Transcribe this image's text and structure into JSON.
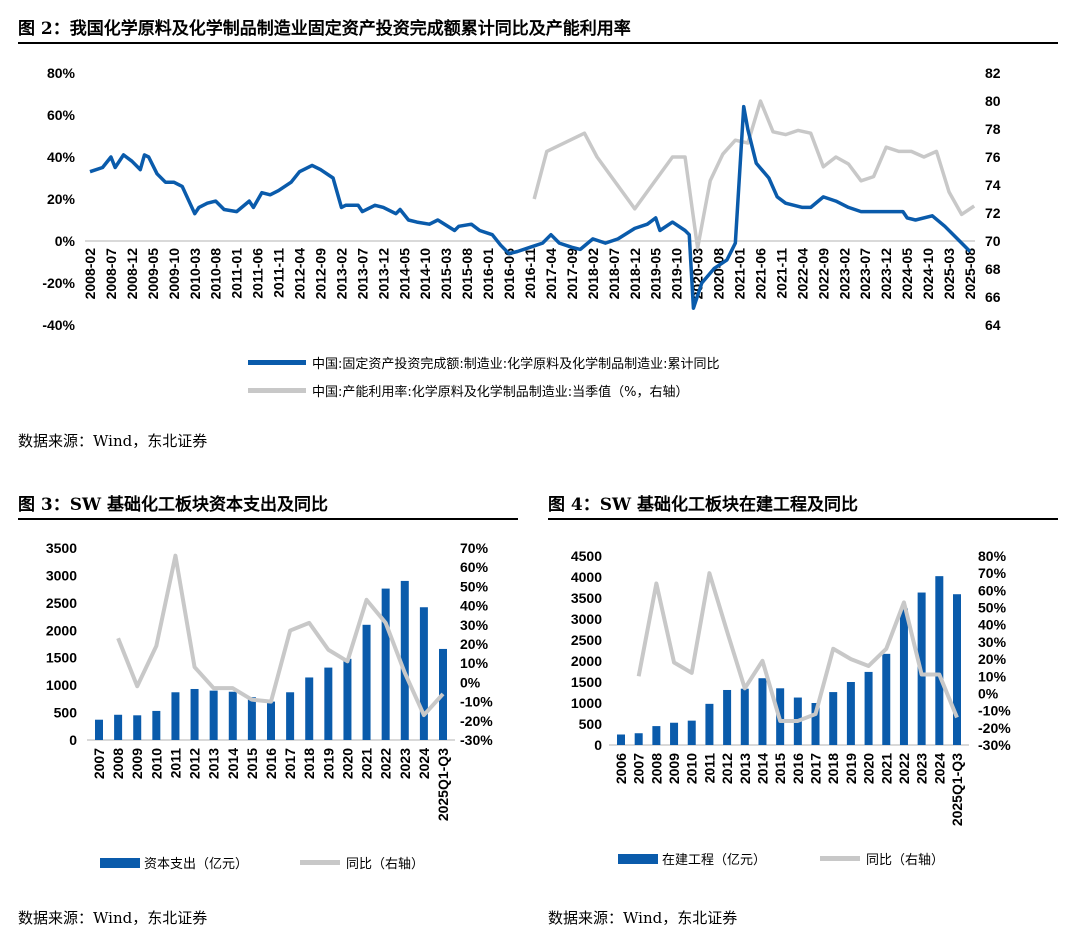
{
  "fig2": {
    "title": "图 2：我国化学原料及化学制品制造业固定资产投资完成额累计同比及产能利用率",
    "source": "数据来源：Wind，东北证券",
    "legend": [
      "中国:固定资产投资完成额:制造业:化学原料及化学制品制造业:累计同比",
      "中国:产能利用率:化学原料及化学制品制造业:当季值（%，右轴）"
    ]
  },
  "fig3": {
    "title": "图 3：SW 基础化工板块资本支出及同比",
    "source": "数据来源：Wind，东北证券",
    "legend": [
      "资本支出（亿元）",
      "同比（右轴）"
    ]
  },
  "fig4": {
    "title": "图 4：SW 基础化工板块在建工程及同比",
    "source": "数据来源：Wind，东北证券",
    "legend": [
      "在建工程（亿元）",
      "同比（右轴）"
    ]
  },
  "colors": {
    "bar": "#0a5bab",
    "line": "#c8c8c8",
    "zero": "#d9d9d9"
  },
  "chart_data": [
    {
      "type": "line",
      "title": "图 2",
      "x_ticks": [
        "2008-02",
        "2008-07",
        "2008-12",
        "2009-05",
        "2009-10",
        "2010-03",
        "2010-08",
        "2011-01",
        "2011-06",
        "2011-11",
        "2012-04",
        "2012-09",
        "2013-02",
        "2013-07",
        "2013-12",
        "2014-05",
        "2014-10",
        "2015-03",
        "2015-08",
        "2016-01",
        "2016-06",
        "2016-11",
        "2017-04",
        "2017-09",
        "2018-02",
        "2018-07",
        "2018-12",
        "2019-05",
        "2019-10",
        "2020-03",
        "2020-08",
        "2021-01",
        "2021-06",
        "2021-11",
        "2022-04",
        "2022-09",
        "2023-02",
        "2023-07",
        "2023-12",
        "2024-05",
        "2024-10",
        "2025-03",
        "2025-08"
      ],
      "y_left": {
        "ticks": [
          "80%",
          "60%",
          "40%",
          "20%",
          "0%",
          "-20%",
          "-40%"
        ],
        "range": [
          -40,
          80
        ]
      },
      "y_right": {
        "ticks": [
          "82",
          "80",
          "78",
          "76",
          "74",
          "72",
          "70",
          "68",
          "66",
          "64"
        ],
        "range": [
          64,
          82
        ]
      },
      "series": [
        {
          "name": "累计同比",
          "axis": "left",
          "points": [
            [
              "2008-02",
              33
            ],
            [
              "2008-05",
              35
            ],
            [
              "2008-07",
              40
            ],
            [
              "2008-08",
              35
            ],
            [
              "2008-10",
              41
            ],
            [
              "2008-12",
              38
            ],
            [
              "2009-02",
              34
            ],
            [
              "2009-03",
              41
            ],
            [
              "2009-04",
              40
            ],
            [
              "2009-06",
              32
            ],
            [
              "2009-08",
              28
            ],
            [
              "2009-10",
              28
            ],
            [
              "2009-12",
              26
            ],
            [
              "2010-03",
              13
            ],
            [
              "2010-04",
              16
            ],
            [
              "2010-06",
              18
            ],
            [
              "2010-08",
              19
            ],
            [
              "2010-10",
              15
            ],
            [
              "2011-01",
              14
            ],
            [
              "2011-04",
              19
            ],
            [
              "2011-05",
              16
            ],
            [
              "2011-07",
              23
            ],
            [
              "2011-09",
              22
            ],
            [
              "2011-11",
              24
            ],
            [
              "2012-02",
              28
            ],
            [
              "2012-04",
              33
            ],
            [
              "2012-07",
              36
            ],
            [
              "2012-09",
              34
            ],
            [
              "2012-12",
              30
            ],
            [
              "2013-02",
              16
            ],
            [
              "2013-03",
              17
            ],
            [
              "2013-06",
              17
            ],
            [
              "2013-07",
              14
            ],
            [
              "2013-10",
              17
            ],
            [
              "2013-12",
              16
            ],
            [
              "2014-03",
              13
            ],
            [
              "2014-04",
              15
            ],
            [
              "2014-06",
              10
            ],
            [
              "2014-08",
              9
            ],
            [
              "2014-11",
              8
            ],
            [
              "2015-01",
              10
            ],
            [
              "2015-05",
              5
            ],
            [
              "2015-06",
              7
            ],
            [
              "2015-09",
              8
            ],
            [
              "2015-11",
              5
            ],
            [
              "2016-02",
              3
            ],
            [
              "2016-04",
              -2
            ],
            [
              "2016-06",
              -6
            ],
            [
              "2016-08",
              -5
            ],
            [
              "2016-11",
              -3
            ],
            [
              "2017-02",
              -1
            ],
            [
              "2017-04",
              3
            ],
            [
              "2017-06",
              -1
            ],
            [
              "2017-09",
              -3
            ],
            [
              "2017-11",
              -4
            ],
            [
              "2018-02",
              1
            ],
            [
              "2018-05",
              -1
            ],
            [
              "2018-08",
              1
            ],
            [
              "2018-12",
              6
            ],
            [
              "2019-03",
              8
            ],
            [
              "2019-05",
              11
            ],
            [
              "2019-06",
              5
            ],
            [
              "2019-09",
              9
            ],
            [
              "2019-12",
              5
            ],
            [
              "2020-01",
              3
            ],
            [
              "2020-02",
              -32
            ],
            [
              "2020-04",
              -20
            ],
            [
              "2020-07",
              -13
            ],
            [
              "2020-10",
              -9
            ],
            [
              "2020-12",
              -1
            ],
            [
              "2021-02",
              64
            ],
            [
              "2021-03",
              53
            ],
            [
              "2021-05",
              37
            ],
            [
              "2021-08",
              30
            ],
            [
              "2021-10",
              21
            ],
            [
              "2021-12",
              18
            ],
            [
              "2022-04",
              16
            ],
            [
              "2022-06",
              16
            ],
            [
              "2022-09",
              21
            ],
            [
              "2022-12",
              19
            ],
            [
              "2023-03",
              16
            ],
            [
              "2023-06",
              14
            ],
            [
              "2023-12",
              14
            ],
            [
              "2024-04",
              14
            ],
            [
              "2024-05",
              11
            ],
            [
              "2024-07",
              10
            ],
            [
              "2024-11",
              12
            ],
            [
              "2025-02",
              7
            ],
            [
              "2025-05",
              1
            ],
            [
              "2025-08",
              -5
            ]
          ]
        },
        {
          "name": "产能利用率",
          "axis": "right",
          "points": [
            [
              "2016-12",
              73
            ],
            [
              "2017-03",
              76.4
            ],
            [
              "2017-12",
              77.7
            ],
            [
              "2018-03",
              76
            ],
            [
              "2018-12",
              72.3
            ],
            [
              "2019-09",
              76
            ],
            [
              "2019-12",
              76
            ],
            [
              "2020-03",
              69.5
            ],
            [
              "2020-06",
              74.3
            ],
            [
              "2020-09",
              76.2
            ],
            [
              "2020-12",
              77.2
            ],
            [
              "2021-03",
              77
            ],
            [
              "2021-06",
              80
            ],
            [
              "2021-09",
              77.8
            ],
            [
              "2021-12",
              77.6
            ],
            [
              "2022-03",
              77.9
            ],
            [
              "2022-06",
              77.7
            ],
            [
              "2022-09",
              75.3
            ],
            [
              "2022-12",
              76
            ],
            [
              "2023-03",
              75.5
            ],
            [
              "2023-06",
              74.3
            ],
            [
              "2023-09",
              74.6
            ],
            [
              "2023-12",
              76.7
            ],
            [
              "2024-03",
              76.4
            ],
            [
              "2024-06",
              76.4
            ],
            [
              "2024-09",
              76
            ],
            [
              "2024-12",
              76.4
            ],
            [
              "2025-03",
              73.5
            ],
            [
              "2025-06",
              71.9
            ],
            [
              "2025-09",
              72.5
            ]
          ]
        }
      ]
    },
    {
      "type": "bar",
      "title": "图 3",
      "categories": [
        "2007",
        "2008",
        "2009",
        "2010",
        "2011",
        "2012",
        "2013",
        "2014",
        "2015",
        "2016",
        "2017",
        "2018",
        "2019",
        "2020",
        "2021",
        "2022",
        "2023",
        "2024",
        "2025Q1-Q3"
      ],
      "y_left": {
        "ticks": [
          "3500",
          "3000",
          "2500",
          "2000",
          "1500",
          "1000",
          "500",
          "0"
        ],
        "range": [
          0,
          3500
        ]
      },
      "y_right": {
        "ticks": [
          "70%",
          "60%",
          "50%",
          "40%",
          "30%",
          "20%",
          "10%",
          "0%",
          "-10%",
          "-20%",
          "-30%"
        ],
        "range": [
          -30,
          70
        ]
      },
      "series": [
        {
          "name": "资本支出（亿元）",
          "values": [
            370,
            460,
            450,
            530,
            870,
            930,
            900,
            880,
            780,
            700,
            870,
            1140,
            1320,
            1480,
            2100,
            2760,
            2900,
            2420,
            1660
          ]
        },
        {
          "name": "同比（右轴）",
          "values": [
            null,
            23,
            -2,
            19,
            66,
            8,
            -3,
            -3,
            -9,
            -10,
            27,
            31,
            17,
            11,
            43,
            31,
            5,
            -17,
            -6
          ]
        }
      ]
    },
    {
      "type": "bar",
      "title": "图 4",
      "categories": [
        "2006",
        "2007",
        "2008",
        "2009",
        "2010",
        "2011",
        "2012",
        "2013",
        "2014",
        "2015",
        "2016",
        "2017",
        "2018",
        "2019",
        "2020",
        "2021",
        "2022",
        "2023",
        "2024",
        "2025Q1-Q3"
      ],
      "y_left": {
        "ticks": [
          "4500",
          "4000",
          "3500",
          "3000",
          "2500",
          "2000",
          "1500",
          "1000",
          "500",
          "0"
        ],
        "range": [
          0,
          4500
        ]
      },
      "y_right": {
        "ticks": [
          "80%",
          "70%",
          "60%",
          "50%",
          "40%",
          "30%",
          "20%",
          "10%",
          "0%",
          "-10%",
          "-20%",
          "-30%"
        ],
        "range": [
          -30,
          80
        ]
      },
      "series": [
        {
          "name": "在建工程（亿元）",
          "values": [
            250,
            280,
            450,
            530,
            580,
            980,
            1310,
            1340,
            1590,
            1350,
            1130,
            1000,
            1260,
            1500,
            1740,
            2170,
            3250,
            3630,
            4020,
            3590
          ]
        },
        {
          "name": "同比（右轴）",
          "values": [
            null,
            10,
            64,
            18,
            12,
            70,
            36,
            3,
            19,
            -16,
            -16,
            -12,
            26,
            20,
            16,
            26,
            53,
            11,
            11,
            -14
          ]
        }
      ]
    }
  ]
}
